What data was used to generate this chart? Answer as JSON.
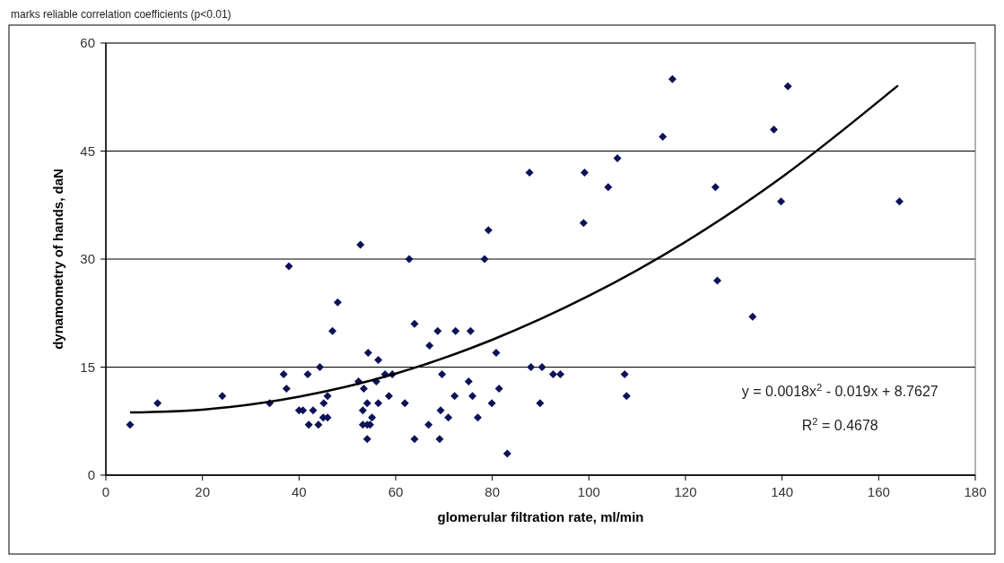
{
  "chart_data": {
    "type": "scatter",
    "title": "marks reliable correlation coefficients (p<0.01)",
    "xlabel": "glomerular filtration rate, ml/min",
    "ylabel": "dynamometry of hands, daN",
    "xlim": [
      0,
      180
    ],
    "xticks": [
      0,
      20,
      40,
      60,
      80,
      100,
      120,
      140,
      160,
      180
    ],
    "ylim": [
      0,
      60
    ],
    "yticks": [
      0,
      15,
      30,
      45,
      60
    ],
    "grid": "y",
    "marker": "diamond",
    "series": [
      {
        "color": "#0d1259",
        "x": [
          5,
          10.7,
          24.1,
          33.9,
          36.8,
          37.4,
          37.9,
          41.8,
          40,
          40.8,
          42.9,
          42,
          44,
          44.3,
          52.7,
          62.8,
          78.4,
          48,
          46.9,
          63.9,
          68.7,
          72.4,
          75.5,
          67,
          80.8,
          54.3,
          56.4,
          88,
          52.3,
          56,
          57.8,
          59.3,
          69.6,
          75.1,
          53.4,
          45.9,
          58.6,
          72.2,
          75.9,
          81.4,
          45.1,
          54.1,
          56.4,
          61.9,
          79.9,
          53.2,
          69.3,
          45,
          45.9,
          55.1,
          70.9,
          77,
          53.2,
          54.1,
          54.7,
          66.8,
          54.1,
          63.9,
          69.1,
          83.1,
          117.3,
          141.2,
          138.3,
          115.3,
          105.9,
          87.7,
          99.1,
          104,
          126.2,
          98.9,
          139.8,
          164.3,
          79.2,
          126.6,
          133.9,
          90.3,
          92.6,
          94.1,
          107.4,
          89.9,
          107.8
        ],
        "values": [
          7,
          10,
          11,
          10,
          14,
          12,
          29,
          14,
          9,
          9,
          9,
          7,
          7,
          15,
          32,
          30,
          30,
          24,
          20,
          21,
          20,
          20,
          20,
          18,
          17,
          17,
          16,
          15,
          13,
          13,
          14,
          14,
          14,
          13,
          12,
          11,
          11,
          11,
          11,
          12,
          10,
          10,
          10,
          10,
          10,
          9,
          9,
          8,
          8,
          8,
          8,
          8,
          7,
          7,
          7,
          7,
          5,
          5,
          5,
          3,
          55,
          54,
          48,
          47,
          44,
          42,
          42,
          40,
          40,
          35,
          38,
          38,
          34,
          27,
          22,
          15,
          14,
          14,
          14,
          10,
          11
        ]
      },
      {
        "type": "line",
        "color": "#000000",
        "marker": "none",
        "x": [
          5,
          20,
          40,
          60,
          80,
          100,
          120,
          140,
          164
        ],
        "values": [
          8.7,
          9.1,
          10.9,
          14.1,
          18.8,
          24.9,
          32.4,
          41.4,
          54.1
        ]
      }
    ],
    "annotations": [
      "y = 0.0018x$^{2}$ - 0.019x + 8.7627",
      "R$^{2}$ = 0.4678"
    ]
  }
}
